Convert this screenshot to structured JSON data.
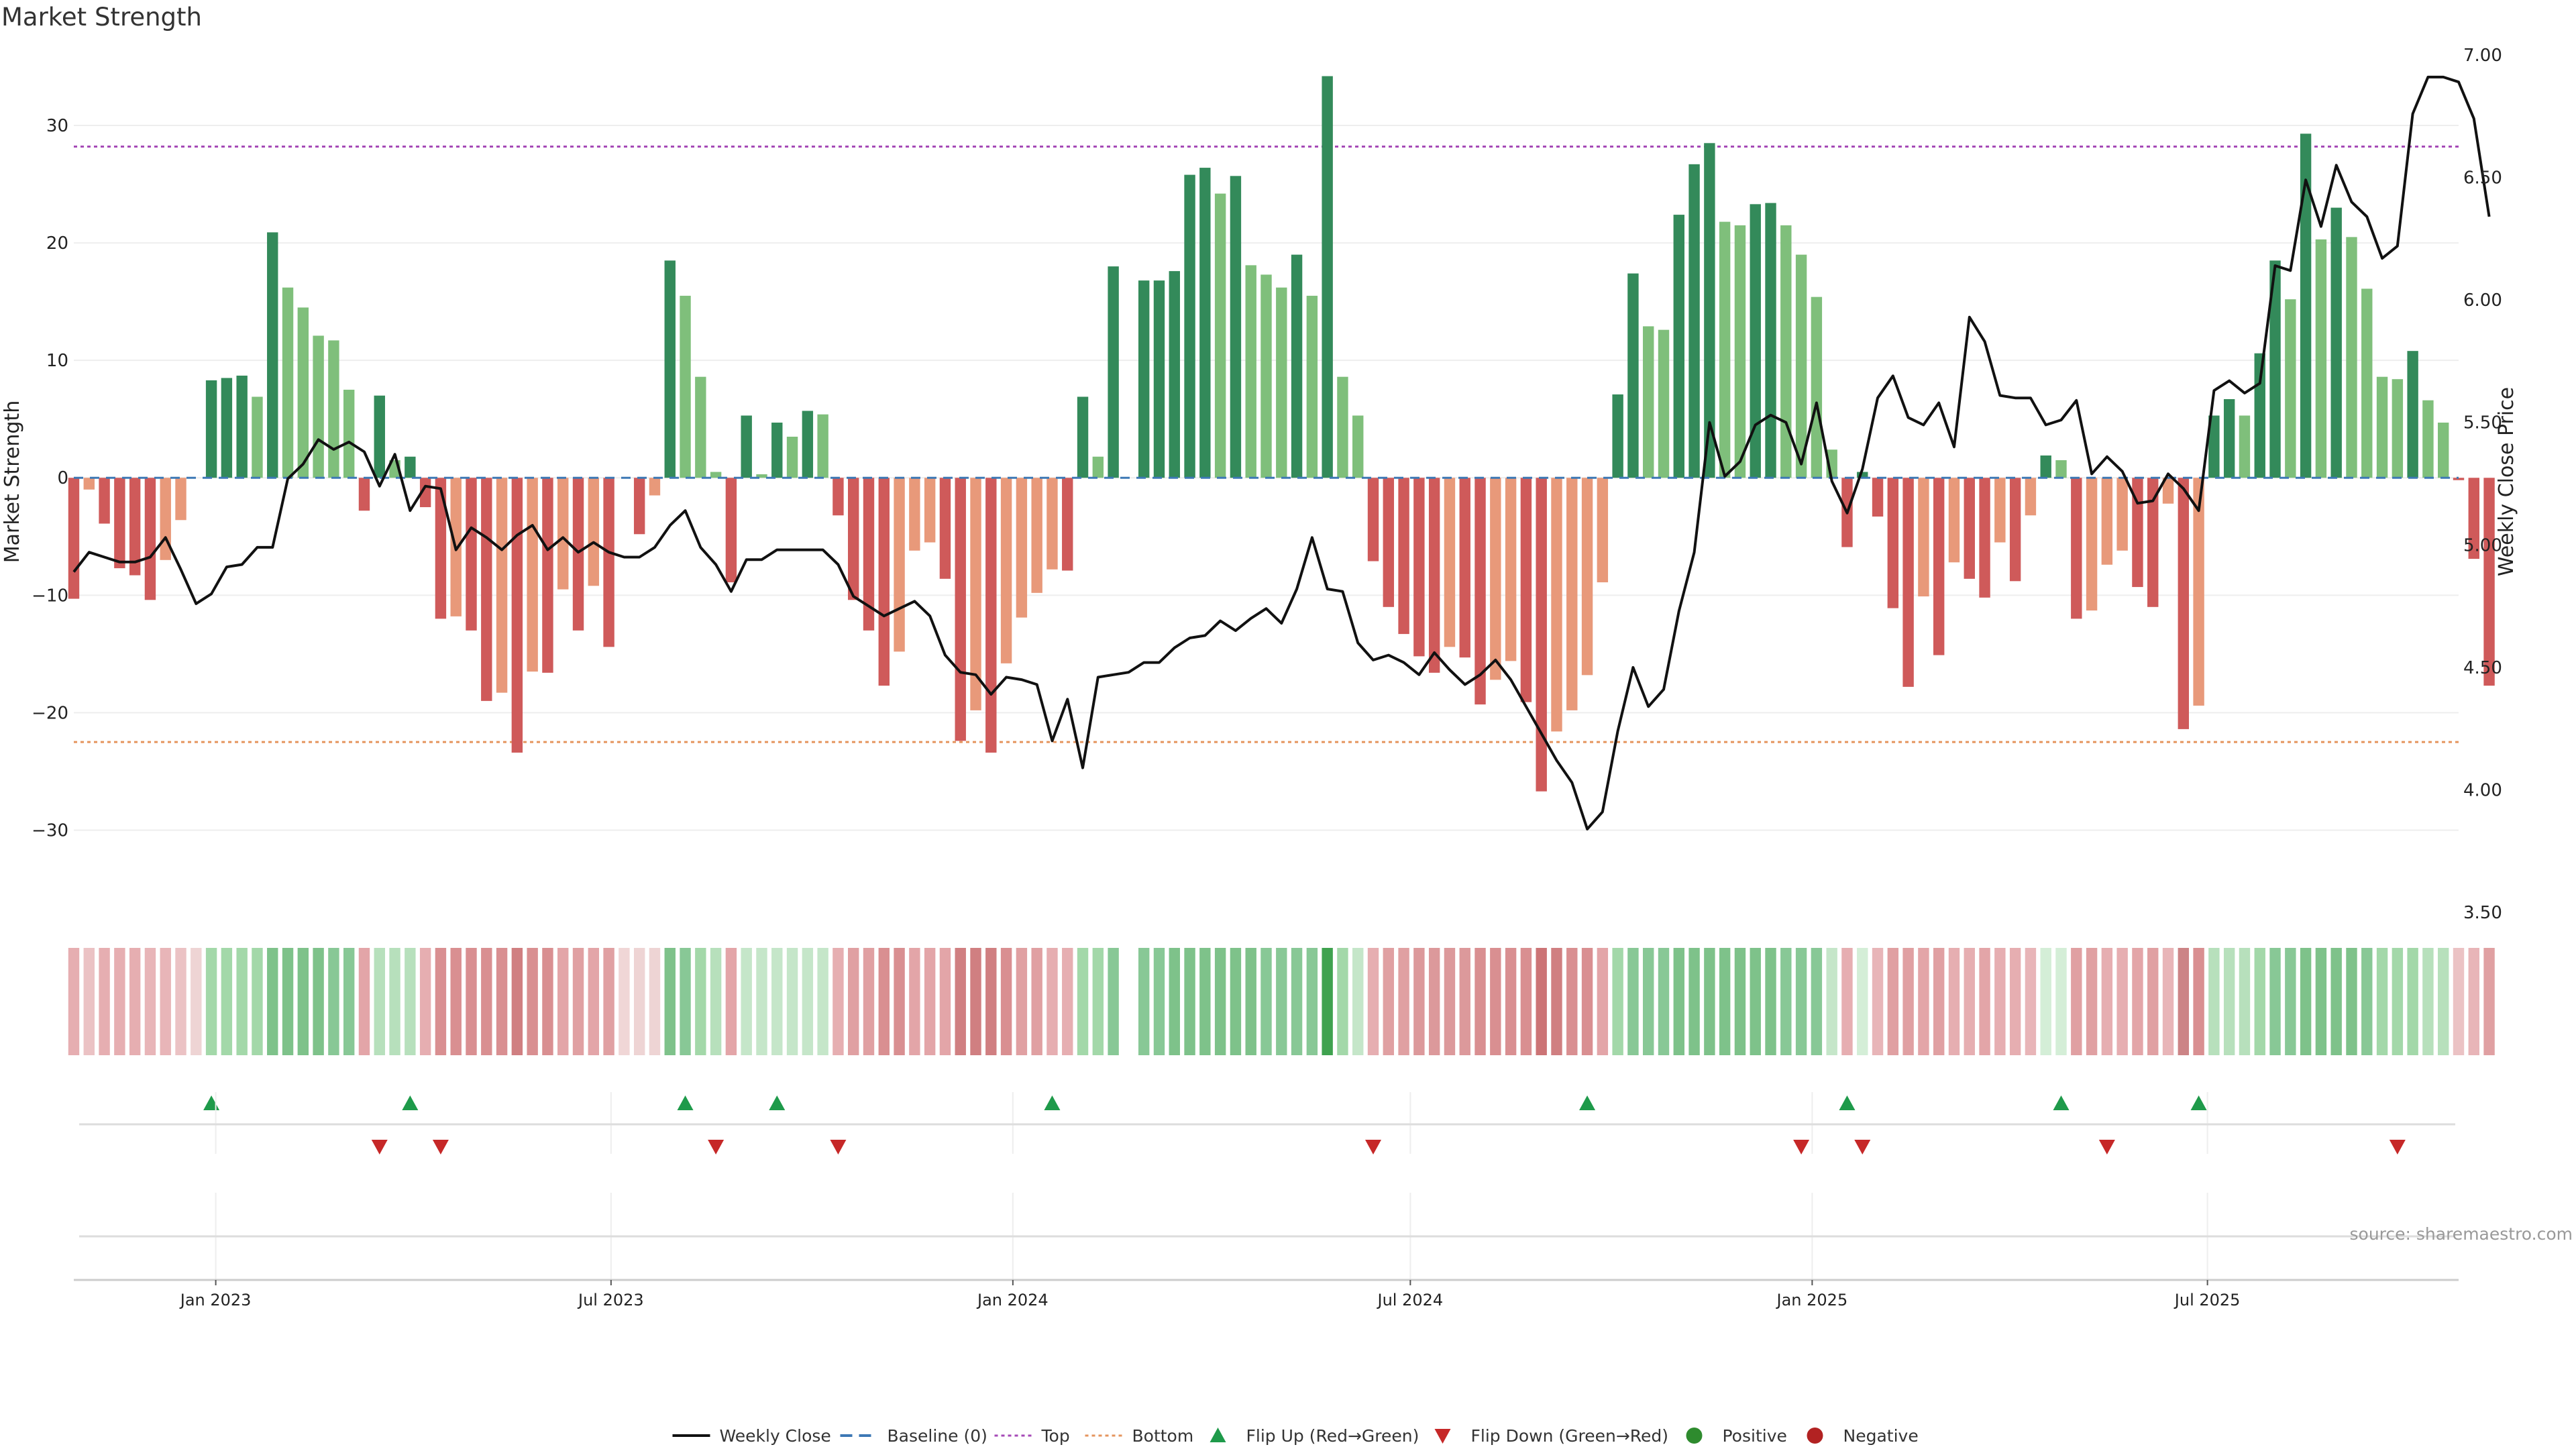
{
  "chart_data": {
    "type": "bar",
    "title": "Market Strength",
    "ylabel": "Market Strength",
    "y2label": "Weekly Close Price",
    "ylim": [
      -37,
      36
    ],
    "y2lim": [
      3.5,
      7.0
    ],
    "yticks": [
      30,
      20,
      10,
      0,
      -10,
      -20,
      -30
    ],
    "y2ticks": [
      "7.00",
      "6.50",
      "6.00",
      "5.50",
      "5.00",
      "4.50",
      "4.00",
      "3.50"
    ],
    "x_range": [
      "2022-10-28",
      "2025-10-24"
    ],
    "start_date": "2022-10-28",
    "date_ticks": [
      {
        "date": "2023-01-01",
        "label": "Jan 2023"
      },
      {
        "date": "2023-07-01",
        "label": "Jul 2023"
      },
      {
        "date": "2024-01-01",
        "label": "Jan 2024"
      },
      {
        "date": "2024-07-01",
        "label": "Jul 2024"
      },
      {
        "date": "2025-01-01",
        "label": "Jan 2025"
      },
      {
        "date": "2025-07-01",
        "label": "Jul 2025"
      }
    ],
    "top_threshold": 28.2,
    "bottom_threshold": -22.5,
    "strength_values": [
      -10.3,
      -1,
      -3.9,
      -7.7,
      -8.3,
      -10.4,
      -7,
      -3.6,
      0,
      8.3,
      8.5,
      8.7,
      6.9,
      20.9,
      16.2,
      14.5,
      12.1,
      11.7,
      7.5,
      -2.8,
      7,
      1.5,
      1.8,
      -2.5,
      -12,
      -11.8,
      -13,
      -19,
      -18.3,
      -23.4,
      -16.5,
      -16.6,
      -9.5,
      -13,
      -9.2,
      -14.4,
      0,
      -4.8,
      -1.5,
      18.5,
      15.5,
      8.6,
      0.5,
      -8.9,
      5.3,
      0.3,
      4.7,
      3.5,
      5.7,
      5.4,
      -3.2,
      -10.4,
      -13,
      -17.7,
      -14.8,
      -6.2,
      -5.5,
      -8.6,
      -22.4,
      -19.8,
      -23.4,
      -15.8,
      -11.9,
      -9.8,
      -7.8,
      -7.9,
      6.9,
      1.8,
      18,
      0,
      16.8,
      16.8,
      17.6,
      25.8,
      26.4,
      24.2,
      25.7,
      18.1,
      17.3,
      16.2,
      19,
      15.5,
      34.2,
      8.6,
      5.3,
      -7.1,
      -11,
      -13.3,
      -15.2,
      -16.6,
      -14.4,
      -15.3,
      -19.3,
      -17.2,
      -15.6,
      -19.1,
      -26.7,
      -21.6,
      -19.8,
      -16.8,
      -8.9,
      7.1,
      17.4,
      12.9,
      12.6,
      22.4,
      26.7,
      28.5,
      21.8,
      21.5,
      23.3,
      23.4,
      21.5,
      19,
      15.4,
      2.4,
      -5.9,
      0.5,
      -3.3,
      -11.1,
      -17.8,
      -10.1,
      -15.1,
      -7.2,
      -8.6,
      -10.2,
      -5.5,
      -8.8,
      -3.2,
      1.9,
      1.5,
      -12,
      -11.3,
      -7.4,
      -6.2,
      -9.3,
      -11,
      -2.2,
      -21.4,
      -19.4,
      5.3,
      6.7,
      5.3,
      10.6,
      18.5,
      15.2,
      29.3,
      20.3,
      23,
      20.5,
      16.1,
      8.6,
      8.4,
      10.8,
      6.6,
      4.7,
      -0.2,
      -6.9,
      -17.7
    ],
    "weekly_close": [
      4.89,
      4.97,
      4.95,
      4.93,
      4.93,
      4.95,
      5.03,
      4.9,
      4.76,
      4.8,
      4.91,
      4.92,
      4.99,
      4.99,
      5.27,
      5.33,
      5.43,
      5.39,
      5.42,
      5.38,
      5.24,
      5.37,
      5.14,
      5.24,
      5.23,
      4.98,
      5.07,
      5.03,
      4.98,
      5.04,
      5.08,
      4.98,
      5.03,
      4.97,
      5.01,
      4.97,
      4.95,
      4.95,
      4.99,
      5.08,
      5.14,
      4.99,
      4.92,
      4.81,
      4.94,
      4.94,
      4.98,
      4.98,
      4.98,
      4.98,
      4.92,
      4.79,
      4.75,
      4.71,
      4.74,
      4.77,
      4.71,
      4.55,
      4.48,
      4.47,
      4.39,
      4.46,
      4.45,
      4.43,
      4.2,
      4.37,
      4.09,
      4.46,
      4.47,
      4.48,
      4.52,
      4.52,
      4.58,
      4.62,
      4.63,
      4.69,
      4.65,
      4.7,
      4.74,
      4.68,
      4.82,
      5.03,
      4.82,
      4.81,
      4.6,
      4.53,
      4.55,
      4.52,
      4.47,
      4.56,
      4.49,
      4.43,
      4.47,
      4.53,
      4.45,
      4.34,
      4.23,
      4.12,
      4.03,
      3.84,
      3.91,
      4.24,
      4.5,
      4.34,
      4.41,
      4.73,
      4.97,
      5.5,
      5.28,
      5.34,
      5.49,
      5.53,
      5.5,
      5.33,
      5.58,
      5.26,
      5.13,
      5.31,
      5.6,
      5.69,
      5.52,
      5.49,
      5.58,
      5.4,
      5.93,
      5.83,
      5.61,
      5.6,
      5.6,
      5.49,
      5.51,
      5.59,
      5.29,
      5.36,
      5.3,
      5.17,
      5.18,
      5.29,
      5.23,
      5.14,
      5.63,
      5.67,
      5.62,
      5.66,
      6.14,
      6.12,
      6.49,
      6.3,
      6.55,
      6.4,
      6.34,
      6.17,
      6.22,
      6.76,
      6.91,
      6.91,
      6.89,
      6.74,
      6.34
    ],
    "flip_up_dates": [
      "2022-12-30",
      "2023-03-31",
      "2023-08-04",
      "2023-09-15",
      "2024-01-19",
      "2024-09-20",
      "2025-01-17",
      "2025-04-25",
      "2025-06-27"
    ],
    "flip_down_dates": [
      "2023-03-17",
      "2023-04-14",
      "2023-08-18",
      "2023-10-13",
      "2024-06-14",
      "2024-12-27",
      "2025-01-24",
      "2025-05-16",
      "2025-09-26"
    ],
    "strip_colors": [
      "#e6aeb1",
      "#ebc2c4",
      "#e6aeb1",
      "#e6aeb1",
      "#e6aeb1",
      "#e8b5b8",
      "#e8b5b8",
      "#ebc2c4",
      "#eed4d4",
      "#a3d8a9",
      "#a3d8a9",
      "#a3d8a9",
      "#a3d8a9",
      "#7ec28a",
      "#7ec28a",
      "#7ec28a",
      "#7ec28a",
      "#88c896",
      "#88c896",
      "#e3a5a8",
      "#b7e0bc",
      "#b7e0bc",
      "#b7e0bc",
      "#e6aeb1",
      "#d98f91",
      "#d98f91",
      "#d98f91",
      "#d98f91",
      "#d98f91",
      "#d07f81",
      "#d98f91",
      "#d98f91",
      "#e3a5a8",
      "#e0a0a2",
      "#e3a5a8",
      "#e0a0a2",
      "#f0d6d6",
      "#eed4d4",
      "#eed4d4",
      "#7ec28a",
      "#88c896",
      "#a3d8a9",
      "#b7e0bc",
      "#e3a5a8",
      "#c5e6c9",
      "#c5e6c9",
      "#c5e6c9",
      "#c5e6c9",
      "#c5e6c9",
      "#c5e6c9",
      "#e6aeb1",
      "#e0a0a2",
      "#e0a0a2",
      "#d98f91",
      "#d98f91",
      "#e3a5a8",
      "#e3a5a8",
      "#e3a5a8",
      "#d07f81",
      "#d07f81",
      "#d07f81",
      "#d98f91",
      "#e0a0a2",
      "#e0a0a2",
      "#e6aeb1",
      "#e6aeb1",
      "#a3d8a9",
      "#a3d8a9",
      "#88c896",
      "#ffffff",
      "#88c896",
      "#88c896",
      "#7ec28a",
      "#7ec28a",
      "#7ec28a",
      "#7ec28a",
      "#7ec28a",
      "#7ec28a",
      "#88c896",
      "#88c896",
      "#88c896",
      "#88c896",
      "#3fa24f",
      "#a3d8a9",
      "#c5e6c9",
      "#e6aeb1",
      "#e0a0a2",
      "#e0a0a2",
      "#dc999b",
      "#dc999b",
      "#dc999b",
      "#dc999b",
      "#d98f91",
      "#d98f91",
      "#d98f91",
      "#d98f91",
      "#cc7476",
      "#d07f81",
      "#d98f91",
      "#d98f91",
      "#e3a5a8",
      "#a3d8a9",
      "#88c896",
      "#88c896",
      "#88c896",
      "#7ec28a",
      "#7ec28a",
      "#7ec28a",
      "#7ec28a",
      "#7ec28a",
      "#7ec28a",
      "#7ec28a",
      "#88c896",
      "#88c896",
      "#88c896",
      "#c5e6c9",
      "#e6aeb1",
      "#d4eed7",
      "#e8b5b8",
      "#e0a0a2",
      "#e0a0a2",
      "#e3a5a8",
      "#e0a0a2",
      "#e6aeb1",
      "#e6aeb1",
      "#e3a5a8",
      "#e6aeb1",
      "#e6aeb1",
      "#e8b5b8",
      "#d4eed7",
      "#d4eed7",
      "#e0a0a2",
      "#e0a0a2",
      "#e6aeb1",
      "#e6aeb1",
      "#e3a5a8",
      "#e0a0a2",
      "#e8b5b8",
      "#cc8486",
      "#d98f91",
      "#b7e0bc",
      "#b7e0bc",
      "#b7e0bc",
      "#a3d8a9",
      "#88c896",
      "#88c896",
      "#7ec28a",
      "#7ec28a",
      "#7ec28a",
      "#7ec28a",
      "#88c896",
      "#a3d8a9",
      "#a3d8a9",
      "#a3d8a9",
      "#b7e0bc",
      "#b7e0bc",
      "#ebc2c4",
      "#e8b5b8",
      "#e0a0a2"
    ],
    "colors": {
      "strong_green": "#338a5a",
      "light_green": "#7fbf7b",
      "strong_red": "#cf5a5a",
      "light_red": "#e8997a",
      "flip_up": "#1e9a4a",
      "flip_down": "#c62828",
      "top_line": "#a64ab7",
      "bottom_line": "#e5955e",
      "baseline": "#3d78b5",
      "positive": "#2e8b2e",
      "negative": "#b22222"
    },
    "legend": [
      {
        "key": "weekly_close",
        "label": "Weekly Close"
      },
      {
        "key": "baseline",
        "label": "Baseline (0)"
      },
      {
        "key": "top",
        "label": "Top"
      },
      {
        "key": "bottom",
        "label": "Bottom"
      },
      {
        "key": "flip_up",
        "label": "Flip Up (Red→Green)"
      },
      {
        "key": "flip_down",
        "label": "Flip Down (Green→Red)"
      },
      {
        "key": "positive",
        "label": "Positive"
      },
      {
        "key": "negative",
        "label": "Negative"
      }
    ],
    "source": "source: sharemaestro.com"
  }
}
